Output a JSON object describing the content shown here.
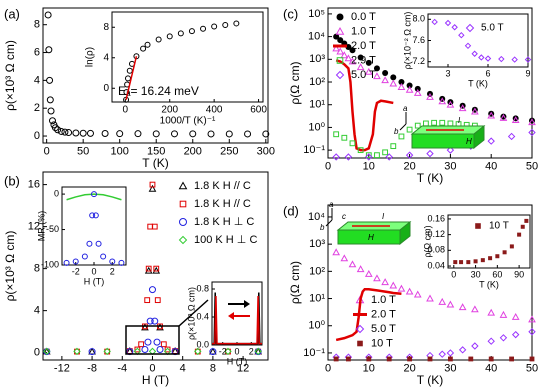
{
  "chart_data": [
    {
      "type": "scatter",
      "label": "(a)",
      "xlabel": "T (K)",
      "ylabel": "ρ(×10³ Ω cm)",
      "xlim": [
        -5,
        303
      ],
      "xticks": [
        0,
        50,
        100,
        150,
        200,
        250,
        300
      ],
      "ylim": [
        -0.5,
        9.2
      ],
      "yticks": [
        0,
        2,
        4,
        6,
        8
      ],
      "series": [
        {
          "color": "#000000",
          "marker": "circle-open",
          "x": [
            2,
            3,
            4,
            5,
            6,
            8,
            10,
            12,
            15,
            20,
            25,
            30,
            40,
            50,
            60,
            80,
            100,
            125,
            150,
            175,
            200,
            225,
            250,
            275,
            300
          ],
          "values": [
            8.7,
            6.2,
            4.0,
            2.6,
            1.8,
            1.1,
            0.8,
            0.6,
            0.45,
            0.33,
            0.28,
            0.25,
            0.22,
            0.2,
            0.19,
            0.18,
            0.17,
            0.17,
            0.16,
            0.16,
            0.16,
            0.15,
            0.15,
            0.15,
            0.15
          ]
        }
      ]
    },
    {
      "type": "scatter",
      "xlabel": "1000/T (K)⁻¹",
      "ylabel": "ln(ρ)",
      "annotation": "Eₐ= 16.24 meV",
      "xlim": [
        -60,
        620
      ],
      "xticks": [
        0,
        200,
        400,
        600
      ],
      "ylim": [
        -1.8,
        10
      ],
      "yticks": [
        0,
        4,
        8
      ],
      "series": [
        {
          "color": "#000000",
          "marker": "circle-open",
          "x": [
            3.3,
            5,
            8,
            12,
            20,
            30,
            50,
            80,
            100,
            150,
            200,
            250,
            300,
            350,
            400,
            450,
            500
          ],
          "values": [
            -1.5,
            -0.5,
            0.5,
            1.3,
            2.3,
            3.2,
            4.2,
            5.2,
            5.7,
            6.4,
            6.8,
            7.2,
            7.5,
            7.8,
            8.1,
            8.3,
            8.5
          ]
        },
        {
          "color": "#e00000",
          "marker": "line",
          "x": [
            3.3,
            50
          ],
          "values": [
            -1.5,
            4.2
          ]
        }
      ]
    },
    {
      "type": "scatter",
      "label": "(b)",
      "xlabel": "H (T)",
      "ylabel": "ρ(×10³ Ω cm)",
      "xlim": [
        -14.5,
        15.3
      ],
      "xticks": [
        -12,
        -8,
        -4,
        0,
        4,
        8,
        12
      ],
      "ylim": [
        -0.7,
        17.2
      ],
      "yticks": [
        0,
        4,
        8,
        12,
        16
      ],
      "series": [
        {
          "name": "1.8 K H // C",
          "color": "#000000",
          "marker": "triangle",
          "x": [
            -14,
            -8,
            -3,
            -1,
            -0.5,
            0,
            0.5,
            1,
            3,
            8,
            14
          ],
          "values": [
            0.1,
            0.1,
            0.15,
            2.4,
            7.8,
            15.6,
            7.8,
            2.4,
            0.15,
            0.1,
            0.1
          ]
        },
        {
          "name": "1.8 K H // C",
          "color": "#e00000",
          "marker": "square",
          "x": [
            -14,
            -10,
            -6,
            -3,
            -2,
            -1.5,
            -1,
            -0.7,
            -0.5,
            -0.3,
            0,
            0.3,
            0.5,
            0.7,
            1,
            1.5,
            2,
            3,
            6,
            10,
            14
          ],
          "values": [
            0.1,
            0.1,
            0.1,
            0.15,
            0.3,
            0.8,
            2.5,
            5,
            8,
            12,
            16,
            12,
            8,
            5,
            2.5,
            0.8,
            0.3,
            0.15,
            0.1,
            0.1,
            0.1
          ]
        },
        {
          "name": "1.8 K H ⊥ C",
          "color": "#2020e0",
          "marker": "circle-open",
          "x": [
            -14,
            -8,
            -3,
            -1,
            -0.6,
            -0.3,
            0,
            0.3,
            0.6,
            1,
            3,
            8,
            14
          ],
          "values": [
            0.1,
            0.1,
            0.1,
            0.3,
            1,
            3,
            6,
            3,
            1,
            0.3,
            0.1,
            0.1,
            0.1
          ]
        },
        {
          "name": "100 K H ⊥ C",
          "color": "#33cc33",
          "marker": "diamond",
          "x": [
            -14,
            -10,
            -6,
            -2,
            0,
            2,
            6,
            10,
            14
          ],
          "values": [
            0.12,
            0.12,
            0.12,
            0.12,
            0.12,
            0.12,
            0.12,
            0.12,
            0.12
          ]
        }
      ]
    },
    {
      "type": "scatter",
      "xlabel": "H (T)",
      "ylabel": "MR (%)",
      "xlim": [
        -3.5,
        3.5
      ],
      "xticks": [
        -2,
        0,
        2
      ],
      "ylim": [
        -100,
        10
      ],
      "yticks": [
        -100,
        -50,
        0
      ],
      "series": [
        {
          "color": "#33cc33",
          "marker": "line",
          "x": [
            -3,
            -2,
            -1,
            0,
            1,
            2,
            3
          ],
          "values": [
            -8,
            -4,
            -1,
            0,
            -1,
            -4,
            -8
          ]
        },
        {
          "color": "#2020e0",
          "marker": "circle-open",
          "x": [
            -3,
            -2,
            -1,
            -0.5,
            -0.2,
            0,
            0.2,
            0.5,
            1,
            2,
            3
          ],
          "values": [
            -97,
            -95,
            -88,
            -70,
            -30,
            0,
            -30,
            -70,
            -88,
            -95,
            -97
          ]
        }
      ]
    },
    {
      "type": "line",
      "xlabel": "H (T)",
      "ylabel": "ρ(×10³ Ω cm)",
      "xlim": [
        -3.5,
        3.5
      ],
      "xticks": [
        -2,
        0,
        2
      ],
      "ylim": [
        0,
        0.9
      ],
      "yticks": [
        {
          "value": 0,
          "label": "0.0"
        },
        0.4,
        0.8
      ],
      "series": [
        {
          "color": "#000000",
          "marker": "line",
          "x": [
            -3.5,
            -3.2,
            -3.05,
            -2.9,
            -2.5,
            0,
            2.5,
            2.9,
            3.05,
            3.2,
            3.5
          ],
          "values": [
            0.02,
            0.02,
            0.75,
            0.02,
            0.02,
            0.02,
            0.02,
            0.02,
            0.75,
            0.02,
            0.02
          ]
        },
        {
          "color": "#e00000",
          "marker": "line",
          "x": [
            -3.5,
            -3.1,
            -2.95,
            -2.8,
            -2.5,
            0,
            2.5,
            2.8,
            2.95,
            3.1,
            3.5
          ],
          "values": [
            0.02,
            0.02,
            0.7,
            0.02,
            0.02,
            0.02,
            0.02,
            0.02,
            0.7,
            0.02,
            0.02
          ]
        }
      ]
    },
    {
      "type": "scatter",
      "label": "(c)",
      "xlabel": "T (K)",
      "ylabel": "ρ(Ω cm)",
      "yscale": "log",
      "schematic_labels": [
        "a",
        "b",
        "I",
        "H"
      ],
      "xlim": [
        0,
        50
      ],
      "xticks": [
        0,
        10,
        20,
        30,
        40,
        50
      ],
      "ylim": [
        0.045,
        182000
      ],
      "yticks": [
        {
          "value": 0.1,
          "label": "10⁻¹"
        },
        {
          "value": 1,
          "label": "10⁰"
        },
        {
          "value": 10,
          "label": "10¹"
        },
        {
          "value": 100,
          "label": "10²"
        },
        {
          "value": 1000,
          "label": "10³"
        },
        {
          "value": 10000,
          "label": "10⁴"
        },
        {
          "value": 100000,
          "label": "10⁵"
        }
      ],
      "series": [
        {
          "name": "0.0 T",
          "color": "#000000",
          "marker": "circle-filled",
          "x": [
            2,
            3,
            4,
            5,
            6,
            8,
            10,
            12,
            14,
            16,
            18,
            20,
            22,
            25,
            28,
            30,
            33,
            36,
            40,
            43,
            46,
            50
          ],
          "values": [
            10000,
            7000,
            5000,
            3500,
            2500,
            1200,
            700,
            400,
            250,
            160,
            100,
            70,
            50,
            30,
            18,
            13,
            9,
            6,
            4,
            3,
            2.5,
            2
          ]
        },
        {
          "name": "1.0 T",
          "color": "#e040e0",
          "marker": "triangle",
          "x": [
            2,
            3,
            4,
            5,
            6,
            8,
            10,
            12,
            14,
            16,
            18,
            20,
            22,
            25,
            28,
            30,
            33,
            36,
            40,
            43,
            46,
            50
          ],
          "values": [
            3000,
            2200,
            1500,
            1100,
            800,
            450,
            280,
            180,
            120,
            85,
            60,
            45,
            33,
            22,
            14,
            10,
            7,
            5,
            3.3,
            2.6,
            2.1,
            1.7
          ]
        },
        {
          "name": "2.0 T",
          "color": "#e00000",
          "marker": "line",
          "x": [
            2,
            3,
            4,
            5,
            5.5,
            6,
            6.5,
            7,
            8,
            9,
            10,
            11,
            11.5,
            12,
            13,
            14,
            16
          ],
          "values": [
            900,
            800,
            600,
            400,
            100,
            5,
            0.5,
            0.12,
            0.1,
            0.1,
            0.12,
            0.5,
            5,
            12,
            15,
            14,
            12
          ]
        },
        {
          "name": "2.9 T",
          "color": "#33cc33",
          "marker": "square",
          "x": [
            2,
            4,
            6,
            8,
            10,
            12,
            14,
            16,
            18,
            20,
            22,
            24,
            26,
            28,
            30,
            32,
            34,
            36
          ],
          "values": [
            0.5,
            0.35,
            0.2,
            0.1,
            0.06,
            0.06,
            0.08,
            0.15,
            0.4,
            0.8,
            1.2,
            1.5,
            1.6,
            1.6,
            1.5,
            1.4,
            1.3,
            1.2
          ]
        },
        {
          "name": "5.0 T",
          "color": "#9933ff",
          "marker": "diamond",
          "x": [
            2,
            5,
            10,
            15,
            20,
            25,
            30,
            35,
            40,
            45,
            50
          ],
          "values": [
            0.05,
            0.05,
            0.05,
            0.05,
            0.06,
            0.07,
            0.1,
            0.15,
            0.25,
            0.4,
            0.6
          ]
        }
      ]
    },
    {
      "type": "scatter",
      "xlabel": "T (K)",
      "ylabel": "ρ(×10⁻² Ω cm)",
      "xlim": [
        1.5,
        9
      ],
      "xticks": [
        3,
        6,
        9
      ],
      "ylim": [
        7.1,
        8.1
      ],
      "yticks": [
        7.2,
        7.6,
        {
          "value": 8,
          "label": "8.0"
        }
      ],
      "series": [
        {
          "name": "5.0 T",
          "color": "#9933ff",
          "marker": "diamond",
          "x": [
            2,
            3,
            3.5,
            4,
            4.5,
            5,
            5.5,
            6,
            7,
            8,
            9
          ],
          "values": [
            7.95,
            7.93,
            7.85,
            7.7,
            7.5,
            7.35,
            7.28,
            7.26,
            7.25,
            7.24,
            7.24
          ]
        }
      ]
    },
    {
      "type": "scatter",
      "label": "(d)",
      "xlabel": "T (K)",
      "ylabel": "ρ(Ω cm)",
      "yscale": "log",
      "schematic_labels": [
        "a",
        "b",
        "c",
        "I",
        "H"
      ],
      "xlim": [
        0,
        50
      ],
      "xticks": [
        0,
        10,
        20,
        30,
        40,
        50
      ],
      "ylim": [
        0.055,
        27500
      ],
      "yticks": [
        {
          "value": 0.1,
          "label": "10⁻¹"
        },
        {
          "value": 1,
          "label": "10⁰"
        },
        {
          "value": 10,
          "label": "10¹"
        },
        {
          "value": 100,
          "label": "10²"
        },
        {
          "value": 1000,
          "label": "10³"
        },
        {
          "value": 10000,
          "label": "10⁴"
        }
      ],
      "series": [
        {
          "name": "1.0 T",
          "color": "#e040e0",
          "marker": "triangle",
          "x": [
            2,
            4,
            6,
            8,
            10,
            12,
            14,
            16,
            18,
            20,
            22,
            25,
            28,
            30,
            33,
            36,
            40,
            43,
            46,
            50
          ],
          "values": [
            500,
            300,
            180,
            120,
            80,
            55,
            40,
            30,
            23,
            18,
            14,
            10,
            7.5,
            6,
            4.8,
            4,
            3,
            2.5,
            2.1,
            1.7
          ]
        },
        {
          "name": "2.0 T",
          "color": "#e00000",
          "marker": "line",
          "x": [
            2,
            4,
            6,
            7,
            7.5,
            8,
            8.5,
            9,
            10,
            12,
            14,
            15,
            16,
            18
          ],
          "values": [
            0.3,
            0.35,
            0.45,
            0.6,
            2,
            10,
            18,
            22,
            22,
            20,
            18,
            17,
            16,
            15
          ]
        },
        {
          "name": "5.0 T",
          "color": "#9933ff",
          "marker": "diamond",
          "x": [
            2,
            5,
            10,
            15,
            20,
            25,
            28,
            30,
            33,
            36,
            40,
            43,
            46,
            50
          ],
          "values": [
            0.07,
            0.07,
            0.07,
            0.07,
            0.07,
            0.08,
            0.09,
            0.1,
            0.13,
            0.18,
            0.27,
            0.36,
            0.47,
            0.6
          ]
        },
        {
          "name": "10 T",
          "color": "#8b1a1a",
          "marker": "square-filled",
          "x": [
            2,
            5,
            10,
            15,
            20,
            25,
            30,
            35,
            40,
            45,
            50
          ],
          "values": [
            0.06,
            0.06,
            0.06,
            0.06,
            0.06,
            0.06,
            0.06,
            0.06,
            0.06,
            0.06,
            0.06
          ]
        }
      ]
    },
    {
      "type": "scatter",
      "xlabel": "T (K)",
      "ylabel": "ρ(Ω cm)",
      "xlim": [
        -8,
        105
      ],
      "xticks": [
        0,
        30,
        60,
        90
      ],
      "ylim": [
        0.035,
        0.17
      ],
      "yticks": [
        0.04,
        0.08,
        0.12,
        0.16
      ],
      "series": [
        {
          "name": "10 T",
          "color": "#8b1a1a",
          "marker": "square-filled",
          "x": [
            2,
            10,
            20,
            30,
            40,
            50,
            60,
            70,
            80,
            90,
            95,
            100
          ],
          "values": [
            0.05,
            0.05,
            0.05,
            0.052,
            0.055,
            0.06,
            0.065,
            0.075,
            0.09,
            0.12,
            0.14,
            0.155
          ]
        }
      ]
    }
  ]
}
